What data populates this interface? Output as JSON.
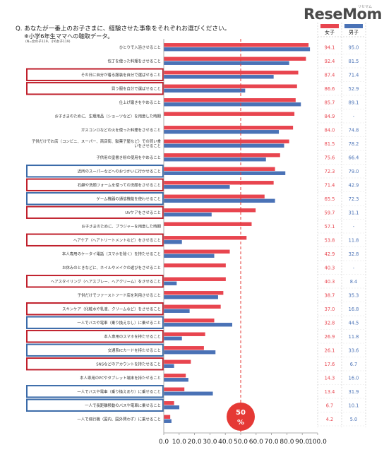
{
  "header": {
    "question": "Q. あなたが一番上のお子さまに、経験させた事象をそれぞれお選びください。",
    "subtitle": "※小学6年生ママへの聴取データ。",
    "note": "(N=女の子119、小6女子119)",
    "logo": "ReseMom",
    "logo_sub": "リセマム"
  },
  "colors": {
    "girls": "#e8454f",
    "boys": "#4a72b6",
    "box_red": "#c0202c",
    "box_blue": "#3a6aa8",
    "ref_line": "#e53935"
  },
  "chart_data": {
    "type": "bar",
    "orientation": "horizontal",
    "categories": [
      "ひとりで入浴させること",
      "包丁を使った料理をさせること",
      "その日に自分が着る服装を自分で選ばせること",
      "買う服を自分で選ばせること",
      "仕上げ磨きをやめること",
      "お子さまのために、生理用品（ショーツなど）を用意した時期",
      "ガスコンロなどの火を使った料理をさせること",
      "子供だけでお店（コンビニ、スーパー、商店街、駄菓子屋など）での買い食いをさせること",
      "子供用の塗書き粉の使用をやめること",
      "近所のスーパーなどへのおつかいに行かせること",
      "石鹸や洗顔フォームを使っての洗顔をさせること",
      "ゲーム機器の通信機能を使わせること",
      "UVケアをさせること",
      "お子さまのために、ブラジャーを用意した時期",
      "ヘアケア（ヘアトリートメントなど）をさせること",
      "本人専用のケータイ電話（スマホを除く）を持たせること",
      "お休みのときなどに、ネイルやメイクの遊びをさせること",
      "ヘアスタイリング（ヘアスプレー、ヘアクリーム）をさせること",
      "子供だけでファーストフード店を利用させること",
      "スキンケア（化粧水や乳液、クリームなど）をさせること",
      "一人でバスや電車（乗り換えなし）に乗せること",
      "本人専用のスマホを持たせること",
      "交通系ICカードを持たせること",
      "SNSなどのアカウントを持たせること",
      "本人専用のPCやタブレット端末を持たせること",
      "一人でバスや電車（乗り換えあり）に乗せること",
      "一人で長距離移動のバスや電車に乗せること",
      "一人で飛行機（国内、国外問わず）に乗せること"
    ],
    "series": [
      {
        "name": "女子",
        "values": [
          94.1,
          92.4,
          87.4,
          86.6,
          85.7,
          84.9,
          84.0,
          81.5,
          75.6,
          72.3,
          71.4,
          65.5,
          59.7,
          57.1,
          53.8,
          42.9,
          40.3,
          40.3,
          38.7,
          37.0,
          32.8,
          26.9,
          26.1,
          17.6,
          14.3,
          13.4,
          6.7,
          4.2
        ]
      },
      {
        "name": "男子",
        "values": [
          95.0,
          81.5,
          71.4,
          52.9,
          89.1,
          null,
          74.8,
          78.2,
          66.4,
          79.0,
          42.9,
          72.3,
          31.1,
          null,
          11.8,
          32.8,
          null,
          8.4,
          35.3,
          16.8,
          44.5,
          11.8,
          33.6,
          6.7,
          16.0,
          31.9,
          10.1,
          5.0
        ]
      }
    ],
    "table_labels": [
      [
        "94.1",
        "95.0"
      ],
      [
        "92.4",
        "81.5"
      ],
      [
        "87.4",
        "71.4"
      ],
      [
        "86.6",
        "52.9"
      ],
      [
        "85.7",
        "89.1"
      ],
      [
        "84.9",
        "-"
      ],
      [
        "84.0",
        "74.8"
      ],
      [
        "81.5",
        "78.2"
      ],
      [
        "75.6",
        "66.4"
      ],
      [
        "72.3",
        "79.0"
      ],
      [
        "71.4",
        "42.9"
      ],
      [
        "65.5",
        "72.3"
      ],
      [
        "59.7",
        "31.1"
      ],
      [
        "57.1",
        "-"
      ],
      [
        "53.8",
        "11.8"
      ],
      [
        "42.9",
        "32.8"
      ],
      [
        "40.3",
        "-"
      ],
      [
        "40.3",
        "8.4"
      ],
      [
        "38.7",
        "35.3"
      ],
      [
        "37.0",
        "16.8"
      ],
      [
        "32.8",
        "44.5"
      ],
      [
        "26.9",
        "11.8"
      ],
      [
        "26.1",
        "33.6"
      ],
      [
        "17.6",
        "6.7"
      ],
      [
        "14.3",
        "16.0"
      ],
      [
        "13.4",
        "31.9"
      ],
      [
        "6.7",
        "10.1"
      ],
      [
        "4.2",
        "5.0"
      ]
    ],
    "highlight": [
      "",
      "",
      "red",
      "red",
      "",
      "",
      "",
      "",
      "",
      "blue",
      "red",
      "blue",
      "red",
      "",
      "red",
      "",
      "",
      "red",
      "",
      "red",
      "blue",
      "red",
      "blue",
      "red",
      "",
      "blue",
      "blue",
      ""
    ],
    "xticks": [
      "0.0",
      "10.0",
      "20.0",
      "30.0",
      "40.0",
      "50.0",
      "60.0",
      "70.0",
      "80.0",
      "90.0",
      "100.0"
    ],
    "xlim": [
      0,
      100
    ],
    "reference_line": 50,
    "reference_label_value": "50",
    "reference_label_unit": "%",
    "legend_position": "top-right",
    "grid": false
  }
}
